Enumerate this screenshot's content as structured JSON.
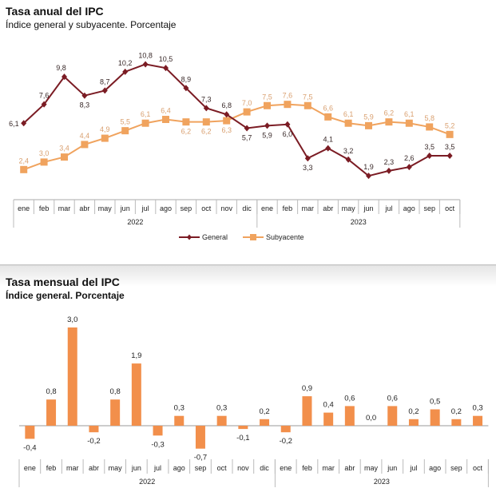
{
  "chart_data": [
    {
      "type": "line",
      "title": "Tasa anual del IPC",
      "subtitle": "Índice general y subyacente. Porcentaje",
      "categories": [
        "ene",
        "feb",
        "mar",
        "abr",
        "may",
        "jun",
        "jul",
        "ago",
        "sep",
        "oct",
        "nov",
        "dic",
        "ene",
        "feb",
        "mar",
        "abr",
        "may",
        "jun",
        "jul",
        "ago",
        "sep",
        "oct"
      ],
      "years": [
        {
          "label": "2022",
          "span": 12
        },
        {
          "label": "2023",
          "span": 10
        }
      ],
      "series": [
        {
          "name": "General",
          "color": "#7b1c24",
          "values": [
            6.1,
            7.6,
            9.8,
            8.3,
            8.7,
            10.2,
            10.8,
            10.5,
            8.9,
            7.3,
            6.8,
            5.7,
            5.9,
            6.0,
            3.3,
            4.1,
            3.2,
            1.9,
            2.3,
            2.6,
            3.5,
            3.5
          ],
          "labels": [
            "6,1",
            "7,6",
            "9,8",
            "8,3",
            "8,7",
            "10,2",
            "10,8",
            "10,5",
            "8,9",
            "7,3",
            "6,8",
            "5,7",
            "5,9",
            "6,0",
            "3,3",
            "4,1",
            "3,2",
            "1,9",
            "2,3",
            "2,6",
            "3,5",
            "3,5"
          ]
        },
        {
          "name": "Subyacente",
          "color": "#f0a35e",
          "values": [
            2.4,
            3.0,
            3.4,
            4.4,
            4.9,
            5.5,
            6.1,
            6.4,
            6.2,
            6.2,
            6.3,
            7.0,
            7.5,
            7.6,
            7.5,
            6.6,
            6.1,
            5.9,
            6.2,
            6.1,
            5.8,
            5.2
          ],
          "labels": [
            "2,4",
            "3,0",
            "3,4",
            "4,4",
            "4,9",
            "5,5",
            "6,1",
            "6,4",
            "6,2",
            "6,2",
            "6,3",
            "7,0",
            "7,5",
            "7,6",
            "7,5",
            "6,6",
            "6,1",
            "5,9",
            "6,2",
            "6,1",
            "5,8",
            "5,2"
          ]
        }
      ],
      "legend_position": "bottom",
      "grid": false
    },
    {
      "type": "bar",
      "title": "Tasa mensual del IPC",
      "subtitle": "Índice general. Porcentaje",
      "categories": [
        "ene",
        "feb",
        "mar",
        "abr",
        "may",
        "jun",
        "jul",
        "ago",
        "sep",
        "oct",
        "nov",
        "dic",
        "ene",
        "feb",
        "mar",
        "abr",
        "may",
        "jun",
        "jul",
        "ago",
        "sep",
        "oct"
      ],
      "years": [
        {
          "label": "2022",
          "span": 12
        },
        {
          "label": "2023",
          "span": 10
        }
      ],
      "values": [
        -0.4,
        0.8,
        3.0,
        -0.2,
        0.8,
        1.9,
        -0.3,
        0.3,
        -0.7,
        0.3,
        -0.1,
        0.2,
        -0.2,
        0.9,
        0.4,
        0.6,
        0.0,
        0.6,
        0.2,
        0.5,
        0.2,
        0.3
      ],
      "labels": [
        "-0,4",
        "0,8",
        "3,0",
        "-0,2",
        "0,8",
        "1,9",
        "-0,3",
        "0,3",
        "-0,7",
        "0,3",
        "-0,1",
        "0,2",
        "-0,2",
        "0,9",
        "0,4",
        "0,6",
        "0,0",
        "0,6",
        "0,2",
        "0,5",
        "0,2",
        "0,3"
      ],
      "color": "#f28f4b",
      "grid": false
    }
  ]
}
